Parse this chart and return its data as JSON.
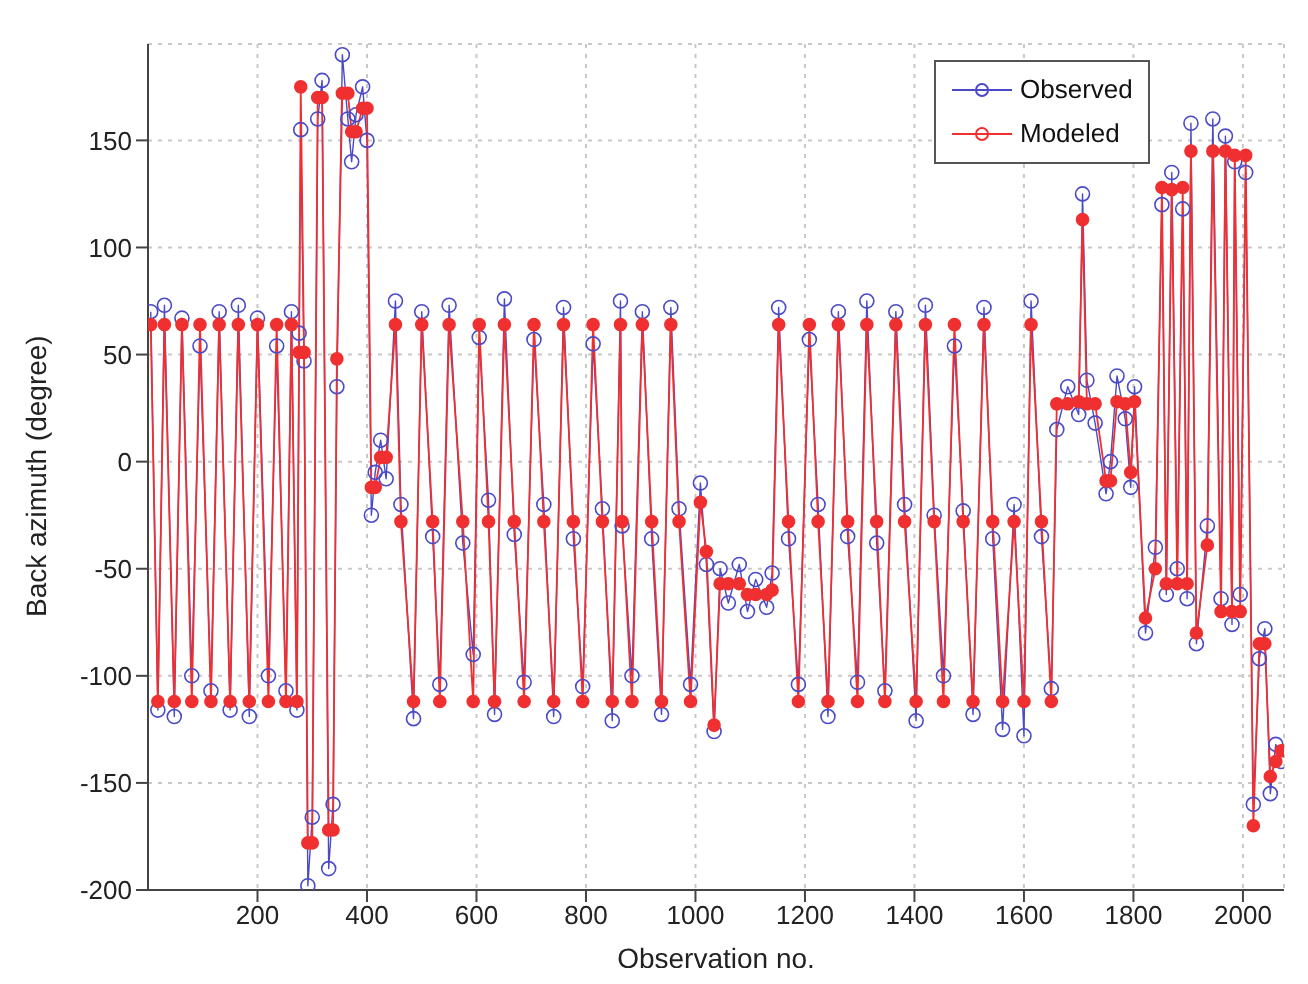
{
  "chart_data": {
    "type": "line",
    "xlabel": "Observation no.",
    "ylabel": "Back azimuth (degree)",
    "xlim": [
      0,
      2075
    ],
    "xticks": [
      200,
      400,
      600,
      800,
      1000,
      1200,
      1400,
      1600,
      1800,
      2000
    ],
    "ylim": [
      -200,
      195
    ],
    "yticks": [
      -200,
      -150,
      -100,
      -50,
      0,
      50,
      100,
      150
    ],
    "grid": true,
    "legend": "top right",
    "marker": "circle",
    "x": [
      5,
      18,
      30,
      48,
      62,
      80,
      95,
      115,
      130,
      150,
      165,
      185,
      200,
      220,
      235,
      252,
      262,
      272,
      276,
      279,
      285,
      292,
      300,
      310,
      318,
      330,
      338,
      345,
      355,
      365,
      372,
      380,
      392,
      400,
      408,
      415,
      425,
      435,
      452,
      462,
      485,
      500,
      520,
      533,
      550,
      575,
      594,
      605,
      622,
      633,
      651,
      669,
      687,
      705,
      723,
      741,
      759,
      777,
      794,
      813,
      830,
      848,
      863,
      866,
      884,
      903,
      920,
      938,
      955,
      970,
      991,
      1009,
      1020,
      1034,
      1045,
      1060,
      1080,
      1095,
      1110,
      1130,
      1140,
      1152,
      1170,
      1188,
      1208,
      1224,
      1242,
      1261,
      1278,
      1296,
      1313,
      1331,
      1346,
      1366,
      1382,
      1403,
      1420,
      1436,
      1453,
      1473,
      1489,
      1507,
      1527,
      1543,
      1561,
      1582,
      1600,
      1613,
      1632,
      1650,
      1660,
      1680,
      1700,
      1707,
      1715,
      1730,
      1750,
      1758,
      1770,
      1785,
      1795,
      1802,
      1822,
      1840,
      1852,
      1860,
      1870,
      1880,
      1890,
      1898,
      1905,
      1915,
      1935,
      1945,
      1960,
      1968,
      1980,
      1985,
      1995,
      2005,
      2019,
      2030,
      2040,
      2050,
      2060,
      2070
    ],
    "series": [
      {
        "name": "Observed",
        "color": "#4a4ac8",
        "values": [
          70,
          -116,
          73,
          -119,
          67,
          -100,
          54,
          -107,
          70,
          -116,
          73,
          -119,
          67,
          -100,
          54,
          -107,
          70,
          -116,
          60,
          155,
          47,
          -198,
          -166,
          160,
          178,
          -190,
          -160,
          35,
          190,
          160,
          140,
          162,
          175,
          150,
          -25,
          -5,
          10,
          -8,
          75,
          -20,
          -120,
          70,
          -35,
          -104,
          73,
          -38,
          -90,
          58,
          -18,
          -118,
          76,
          -34,
          -103,
          57,
          -20,
          -119,
          72,
          -36,
          -105,
          55,
          -22,
          -121,
          75,
          -30,
          -100,
          70,
          -36,
          -118,
          72,
          -22,
          -104,
          -10,
          -48,
          -126,
          -50,
          -66,
          -48,
          -70,
          -55,
          -68,
          -52,
          72,
          -36,
          -104,
          57,
          -20,
          -119,
          70,
          -35,
          -103,
          75,
          -38,
          -107,
          70,
          -20,
          -121,
          73,
          -25,
          -100,
          54,
          -23,
          -118,
          72,
          -36,
          -125,
          -20,
          -128,
          75,
          -35,
          -106,
          15,
          35,
          22,
          125,
          38,
          18,
          -15,
          0,
          40,
          20,
          -12,
          35,
          -80,
          -40,
          120,
          -62,
          135,
          -50,
          118,
          -64,
          158,
          -85,
          -30,
          160,
          -64,
          152,
          -76,
          140,
          -62,
          135,
          -160,
          -92,
          -78,
          -155,
          -132,
          -140
        ]
      },
      {
        "name": "Modeled",
        "color": "#f03030",
        "values": [
          64,
          -112,
          64,
          -112,
          64,
          -112,
          64,
          -112,
          64,
          -112,
          64,
          -112,
          64,
          -112,
          64,
          -112,
          64,
          -112,
          51,
          175,
          51,
          -178,
          -178,
          170,
          170,
          -172,
          -172,
          48,
          172,
          172,
          154,
          154,
          165,
          165,
          -12,
          -12,
          2,
          2,
          64,
          -28,
          -112,
          64,
          -28,
          -112,
          64,
          -28,
          -112,
          64,
          -28,
          -112,
          64,
          -28,
          -112,
          64,
          -28,
          -112,
          64,
          -28,
          -112,
          64,
          -28,
          -112,
          64,
          -28,
          -112,
          64,
          -28,
          -112,
          64,
          -28,
          -112,
          -19,
          -42,
          -123,
          -57,
          -57,
          -57,
          -62,
          -62,
          -62,
          -60,
          64,
          -28,
          -112,
          64,
          -28,
          -112,
          64,
          -28,
          -112,
          64,
          -28,
          -112,
          64,
          -28,
          -112,
          64,
          -28,
          -112,
          64,
          -28,
          -112,
          64,
          -28,
          -112,
          -28,
          -112,
          64,
          -28,
          -112,
          27,
          27,
          28,
          113,
          27,
          27,
          -9,
          -9,
          28,
          27,
          -5,
          28,
          -73,
          -50,
          128,
          -57,
          127,
          -57,
          128,
          -57,
          145,
          -80,
          -39,
          145,
          -70,
          145,
          -70,
          143,
          -70,
          143,
          -170,
          -85,
          -85,
          -147,
          -140,
          -135
        ]
      }
    ]
  }
}
